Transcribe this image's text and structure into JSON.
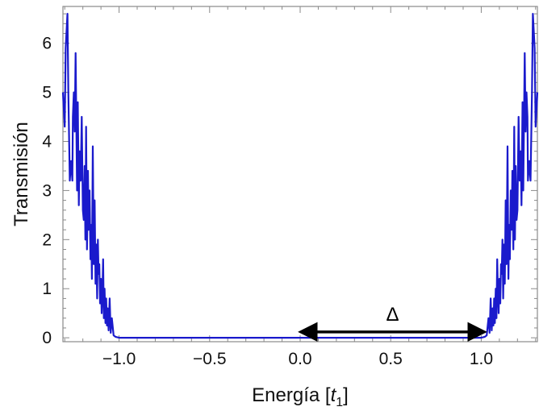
{
  "chart_data": {
    "type": "line",
    "title": "",
    "xlabel_prefix": "Energía [",
    "xlabel_var": "t",
    "xlabel_sub": "1",
    "xlabel_suffix": "]",
    "ylabel": "Transmisión",
    "xlim": [
      -1.31,
      1.31
    ],
    "ylim": [
      -0.08,
      6.75
    ],
    "xticks": [
      -1.0,
      -0.5,
      0.0,
      0.5,
      1.0
    ],
    "xtick_labels": [
      "−1.0",
      "−0.5",
      "0.0",
      "0.5",
      "1.0"
    ],
    "yticks": [
      0,
      1,
      2,
      3,
      4,
      5,
      6
    ],
    "ytick_labels": [
      "0",
      "1",
      "2",
      "3",
      "4",
      "5",
      "6"
    ],
    "grid": false,
    "annotation": {
      "text": "Δ",
      "x_start": 0.0,
      "x_end": 1.02,
      "y": 0.12
    },
    "series": [
      {
        "color": "#1a1acc",
        "x": [
          -1.31,
          -1.3,
          -1.295,
          -1.285,
          -1.28,
          -1.272,
          -1.265,
          -1.258,
          -1.255,
          -1.25,
          -1.245,
          -1.24,
          -1.232,
          -1.228,
          -1.222,
          -1.218,
          -1.212,
          -1.206,
          -1.2,
          -1.195,
          -1.19,
          -1.186,
          -1.182,
          -1.177,
          -1.172,
          -1.168,
          -1.163,
          -1.158,
          -1.154,
          -1.15,
          -1.145,
          -1.14,
          -1.135,
          -1.13,
          -1.126,
          -1.121,
          -1.117,
          -1.113,
          -1.109,
          -1.105,
          -1.1,
          -1.096,
          -1.092,
          -1.088,
          -1.084,
          -1.08,
          -1.075,
          -1.071,
          -1.067,
          -1.063,
          -1.058,
          -1.052,
          -1.046,
          -1.04,
          -1.03,
          -1.02,
          -1.0,
          -0.9,
          0.0,
          0.9,
          1.0,
          1.02,
          1.03,
          1.04,
          1.046,
          1.052,
          1.058,
          1.063,
          1.067,
          1.071,
          1.075,
          1.08,
          1.084,
          1.088,
          1.092,
          1.096,
          1.1,
          1.105,
          1.109,
          1.113,
          1.117,
          1.121,
          1.126,
          1.13,
          1.135,
          1.14,
          1.145,
          1.15,
          1.154,
          1.158,
          1.163,
          1.168,
          1.172,
          1.177,
          1.182,
          1.186,
          1.19,
          1.195,
          1.2,
          1.206,
          1.212,
          1.218,
          1.222,
          1.228,
          1.232,
          1.24,
          1.245,
          1.25,
          1.255,
          1.258,
          1.265,
          1.272,
          1.28,
          1.285,
          1.295,
          1.3,
          1.31
        ],
        "y": [
          5.0,
          4.3,
          5.9,
          6.6,
          5.0,
          3.2,
          3.6,
          3.2,
          4.5,
          5.0,
          4.2,
          5.8,
          3.0,
          4.8,
          2.7,
          3.8,
          3.2,
          4.5,
          2.6,
          2.4,
          3.5,
          2.0,
          4.3,
          1.8,
          3.4,
          2.2,
          3.0,
          1.6,
          2.3,
          1.2,
          3.9,
          1.5,
          2.8,
          1.1,
          1.9,
          0.8,
          2.0,
          1.3,
          1.5,
          0.7,
          1.2,
          0.5,
          0.9,
          1.6,
          0.4,
          1.0,
          0.3,
          0.8,
          0.25,
          0.6,
          0.15,
          0.8,
          0.1,
          0.4,
          0.05,
          0.02,
          0.0,
          0.0,
          0.0,
          0.0,
          0.0,
          0.02,
          0.05,
          0.4,
          0.1,
          0.8,
          0.15,
          0.6,
          0.25,
          0.8,
          0.3,
          1.0,
          0.4,
          1.6,
          0.9,
          0.5,
          1.2,
          0.7,
          1.5,
          1.3,
          2.0,
          0.8,
          1.9,
          1.1,
          2.8,
          1.5,
          3.9,
          1.2,
          2.3,
          1.6,
          3.0,
          2.2,
          3.4,
          1.8,
          4.3,
          2.0,
          3.5,
          2.4,
          2.6,
          4.5,
          3.2,
          3.8,
          2.7,
          4.8,
          3.0,
          5.8,
          4.2,
          5.0,
          4.5,
          3.2,
          3.6,
          3.2,
          5.0,
          6.6,
          5.9,
          4.3,
          5.0
        ]
      }
    ]
  }
}
